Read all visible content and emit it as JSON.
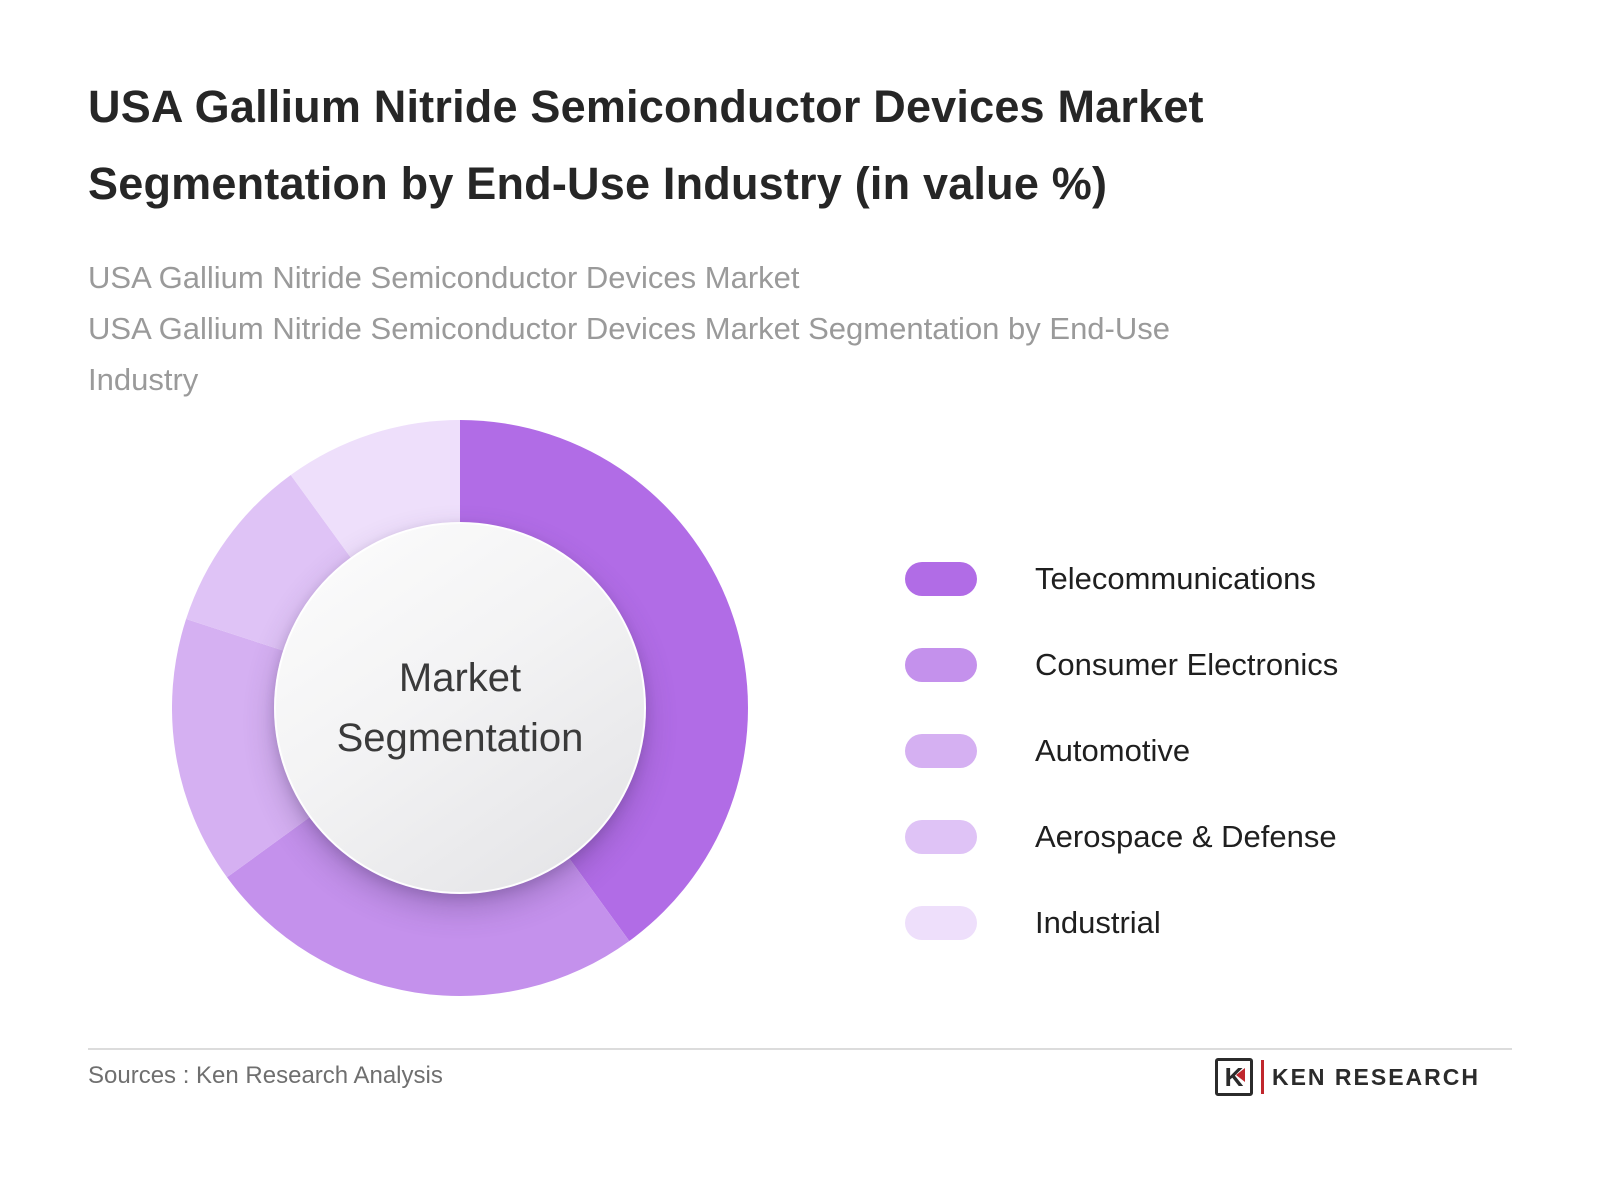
{
  "header": {
    "title": "USA Gallium Nitride Semiconductor Devices Market Segmentation by End-Use Industry (in value %)",
    "subtitle_line1": "USA Gallium Nitride Semiconductor Devices Market",
    "subtitle_line2": "USA Gallium Nitride Semiconductor Devices Market Segmentation by End-Use Industry"
  },
  "chart_data": {
    "type": "pie",
    "donut": true,
    "title": "USA Gallium Nitride Semiconductor Devices Market Segmentation by End-Use Industry (in value %)",
    "center_label": "Market Segmentation",
    "categories": [
      "Telecommunications",
      "Consumer Electronics",
      "Automotive",
      "Aerospace & Defense",
      "Industrial"
    ],
    "values": [
      40,
      25,
      15,
      10,
      10
    ],
    "unit": "value %",
    "colors": [
      "#b16ce6",
      "#c491ec",
      "#d5b0f2",
      "#dfc3f6",
      "#eedffb"
    ],
    "start_angle_deg": 0,
    "direction": "clockwise",
    "legend_position": "right"
  },
  "footer": {
    "sources": "Sources : Ken Research Analysis",
    "brand_letter": "K",
    "brand_name": "KEN RESEARCH"
  }
}
